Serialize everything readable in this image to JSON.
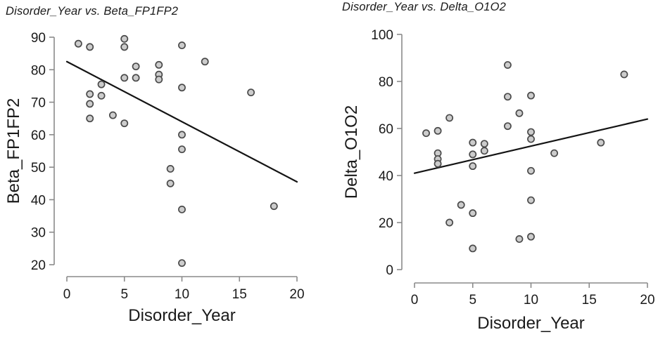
{
  "figure": {
    "background": "#ffffff"
  },
  "colors": {
    "point_fill": "#cccccc",
    "point_stroke": "#4a4a4a",
    "trend_line": "#141414",
    "axis": "#8a8a8a",
    "text": "#1a1a1a"
  },
  "chart_data": [
    {
      "type": "scatter",
      "title": "Disorder_Year vs. Beta_FP1FP2",
      "xlabel": "Disorder_Year",
      "ylabel": "Beta_FP1FP2",
      "xlim": [
        0,
        20
      ],
      "ylim": [
        20,
        90
      ],
      "x_ticks": [
        0,
        5,
        10,
        15,
        20
      ],
      "y_ticks": [
        20,
        30,
        40,
        50,
        60,
        70,
        80,
        90
      ],
      "grid": false,
      "legend": null,
      "points": [
        [
          1,
          88
        ],
        [
          2,
          87
        ],
        [
          2,
          72.5
        ],
        [
          2,
          69.5
        ],
        [
          2,
          65
        ],
        [
          3,
          75.5
        ],
        [
          3,
          72
        ],
        [
          4,
          66
        ],
        [
          5,
          89.5
        ],
        [
          5,
          87
        ],
        [
          5,
          77.5
        ],
        [
          5,
          63.5
        ],
        [
          6,
          81
        ],
        [
          6,
          77.5
        ],
        [
          8,
          81.5
        ],
        [
          8,
          78.5
        ],
        [
          8,
          77
        ],
        [
          9,
          49.5
        ],
        [
          9,
          45
        ],
        [
          10,
          87.5
        ],
        [
          10,
          74.5
        ],
        [
          10,
          60
        ],
        [
          10,
          55.5
        ],
        [
          10,
          37
        ],
        [
          10,
          20.5
        ],
        [
          12,
          82.5
        ],
        [
          16,
          73
        ],
        [
          18,
          38
        ]
      ],
      "trend_line": {
        "x1": 0,
        "y1": 82.5,
        "x2": 20,
        "y2": 45.5
      }
    },
    {
      "type": "scatter",
      "title": "Disorder_Year vs. Delta_O1O2",
      "xlabel": "Disorder_Year",
      "ylabel": "Delta_O1O2",
      "xlim": [
        0,
        20
      ],
      "ylim": [
        0,
        100
      ],
      "x_ticks": [
        0,
        5,
        10,
        15,
        20
      ],
      "y_ticks": [
        0,
        20,
        40,
        60,
        80,
        100
      ],
      "grid": false,
      "legend": null,
      "points": [
        [
          1,
          58
        ],
        [
          2,
          59
        ],
        [
          2,
          49.5
        ],
        [
          2,
          47
        ],
        [
          2,
          45
        ],
        [
          3,
          64.5
        ],
        [
          3,
          20
        ],
        [
          4,
          27.5
        ],
        [
          5,
          54
        ],
        [
          5,
          49
        ],
        [
          5,
          44
        ],
        [
          5,
          24
        ],
        [
          5,
          9
        ],
        [
          6,
          53.5
        ],
        [
          6,
          50.5
        ],
        [
          8,
          87
        ],
        [
          8,
          73.5
        ],
        [
          8,
          61
        ],
        [
          9,
          66.5
        ],
        [
          9,
          13
        ],
        [
          10,
          74
        ],
        [
          10,
          58.5
        ],
        [
          10,
          55.5
        ],
        [
          10,
          42
        ],
        [
          10,
          29.5
        ],
        [
          10,
          14
        ],
        [
          12,
          49.5
        ],
        [
          16,
          54
        ],
        [
          18,
          83
        ]
      ],
      "trend_line": {
        "x1": 0,
        "y1": 41,
        "x2": 20,
        "y2": 64
      }
    }
  ]
}
